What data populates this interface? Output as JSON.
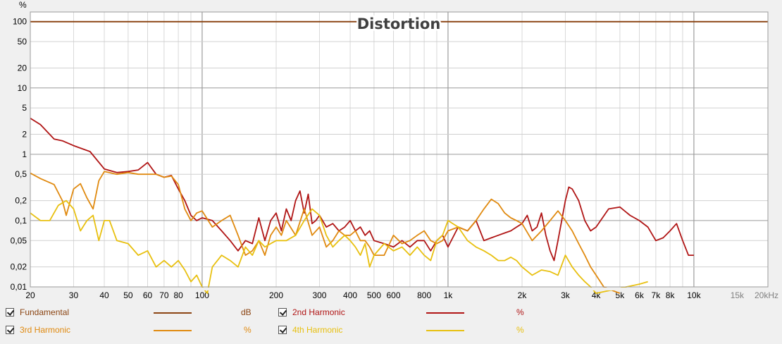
{
  "chart_data": {
    "type": "line",
    "title": "Distortion",
    "ylabel": "%",
    "xlabel": "",
    "xscale": "log",
    "yscale": "log",
    "xlim": [
      20,
      20000
    ],
    "ylim": [
      0.01,
      140
    ],
    "grid": true,
    "x_ticks": [
      {
        "v": 20,
        "label": "20"
      },
      {
        "v": 30,
        "label": "30"
      },
      {
        "v": 40,
        "label": "40"
      },
      {
        "v": 50,
        "label": "50"
      },
      {
        "v": 60,
        "label": "60"
      },
      {
        "v": 70,
        "label": "70"
      },
      {
        "v": 80,
        "label": "80"
      },
      {
        "v": 100,
        "label": "100"
      },
      {
        "v": 200,
        "label": "200"
      },
      {
        "v": 300,
        "label": "300"
      },
      {
        "v": 400,
        "label": "400"
      },
      {
        "v": 500,
        "label": "500"
      },
      {
        "v": 600,
        "label": "600"
      },
      {
        "v": 800,
        "label": "800"
      },
      {
        "v": 1000,
        "label": "1k"
      },
      {
        "v": 2000,
        "label": "2k"
      },
      {
        "v": 3000,
        "label": "3k"
      },
      {
        "v": 4000,
        "label": "4k"
      },
      {
        "v": 5000,
        "label": "5k"
      },
      {
        "v": 6000,
        "label": "6k"
      },
      {
        "v": 7000,
        "label": "7k"
      },
      {
        "v": 8000,
        "label": "8k"
      },
      {
        "v": 10000,
        "label": "10k"
      },
      {
        "v": 15000,
        "label": "15k"
      },
      {
        "v": 20000,
        "label": "20kHz"
      }
    ],
    "y_ticks": [
      {
        "v": 100,
        "label": "100"
      },
      {
        "v": 50,
        "label": "50"
      },
      {
        "v": 20,
        "label": "20"
      },
      {
        "v": 10,
        "label": "10"
      },
      {
        "v": 5,
        "label": "5"
      },
      {
        "v": 2,
        "label": "2"
      },
      {
        "v": 1,
        "label": "1"
      },
      {
        "v": 0.5,
        "label": "0,5"
      },
      {
        "v": 0.2,
        "label": "0,2"
      },
      {
        "v": 0.1,
        "label": "0,1"
      },
      {
        "v": 0.05,
        "label": "0,05"
      },
      {
        "v": 0.02,
        "label": "0,02"
      },
      {
        "v": 0.01,
        "label": "0,01"
      }
    ],
    "series": [
      {
        "name": "Fundamental",
        "unit": "dB",
        "color": "#8b4513",
        "x": [
          20,
          20000
        ],
        "y": [
          100,
          100
        ]
      },
      {
        "name": "2nd Harmonic",
        "unit": "%",
        "color": "#b01515",
        "x": [
          20,
          22,
          25,
          27,
          30,
          35,
          40,
          45,
          50,
          55,
          60,
          65,
          70,
          75,
          80,
          85,
          90,
          95,
          100,
          110,
          120,
          130,
          140,
          150,
          160,
          170,
          180,
          190,
          200,
          210,
          220,
          230,
          240,
          250,
          260,
          270,
          280,
          290,
          300,
          320,
          340,
          360,
          380,
          400,
          420,
          440,
          460,
          480,
          500,
          550,
          600,
          650,
          700,
          750,
          800,
          850,
          900,
          950,
          1000,
          1100,
          1200,
          1300,
          1400,
          1500,
          1600,
          1700,
          1800,
          1900,
          2000,
          2100,
          2200,
          2300,
          2400,
          2500,
          2600,
          2700,
          2800,
          2900,
          3000,
          3100,
          3200,
          3400,
          3600,
          3800,
          4000,
          4500,
          5000,
          5500,
          6000,
          6500,
          7000,
          7500,
          8000,
          8500,
          9000,
          9500,
          10000
        ],
        "y": [
          3.5,
          2.8,
          1.7,
          1.6,
          1.35,
          1.1,
          0.6,
          0.53,
          0.55,
          0.58,
          0.75,
          0.5,
          0.45,
          0.48,
          0.3,
          0.2,
          0.12,
          0.1,
          0.11,
          0.1,
          0.07,
          0.05,
          0.035,
          0.05,
          0.045,
          0.11,
          0.05,
          0.1,
          0.13,
          0.07,
          0.15,
          0.1,
          0.2,
          0.28,
          0.13,
          0.25,
          0.09,
          0.1,
          0.12,
          0.08,
          0.09,
          0.07,
          0.08,
          0.1,
          0.07,
          0.08,
          0.06,
          0.07,
          0.05,
          0.045,
          0.04,
          0.05,
          0.04,
          0.05,
          0.05,
          0.035,
          0.05,
          0.06,
          0.04,
          0.08,
          0.07,
          0.1,
          0.05,
          0.055,
          0.06,
          0.065,
          0.07,
          0.08,
          0.09,
          0.12,
          0.07,
          0.08,
          0.13,
          0.06,
          0.035,
          0.025,
          0.05,
          0.1,
          0.2,
          0.32,
          0.3,
          0.2,
          0.1,
          0.07,
          0.08,
          0.15,
          0.16,
          0.12,
          0.1,
          0.08,
          0.05,
          0.055,
          0.07,
          0.09,
          0.05,
          0.03,
          0.03
        ]
      },
      {
        "name": "3rd Harmonic",
        "unit": "%",
        "color": "#e08a10",
        "x": [
          20,
          22,
          25,
          27,
          28,
          30,
          32,
          34,
          36,
          38,
          40,
          45,
          50,
          55,
          60,
          65,
          70,
          75,
          80,
          85,
          90,
          95,
          100,
          110,
          120,
          130,
          140,
          150,
          160,
          170,
          180,
          190,
          200,
          210,
          220,
          240,
          260,
          280,
          300,
          320,
          340,
          360,
          380,
          400,
          420,
          440,
          460,
          480,
          500,
          550,
          600,
          650,
          700,
          750,
          800,
          850,
          900,
          950,
          1000,
          1100,
          1200,
          1300,
          1400,
          1500,
          1600,
          1700,
          1800,
          1900,
          2000,
          2200,
          2400,
          2600,
          2800,
          3000,
          3200,
          3400,
          3600,
          3800,
          4000,
          4300,
          4600,
          5000
        ],
        "y": [
          0.52,
          0.43,
          0.35,
          0.2,
          0.12,
          0.3,
          0.36,
          0.22,
          0.15,
          0.4,
          0.55,
          0.5,
          0.53,
          0.5,
          0.5,
          0.5,
          0.45,
          0.47,
          0.35,
          0.15,
          0.1,
          0.13,
          0.14,
          0.08,
          0.1,
          0.12,
          0.06,
          0.03,
          0.035,
          0.05,
          0.03,
          0.06,
          0.08,
          0.06,
          0.1,
          0.06,
          0.15,
          0.06,
          0.08,
          0.04,
          0.05,
          0.07,
          0.06,
          0.06,
          0.07,
          0.05,
          0.05,
          0.04,
          0.03,
          0.03,
          0.06,
          0.045,
          0.05,
          0.06,
          0.07,
          0.05,
          0.045,
          0.05,
          0.07,
          0.08,
          0.07,
          0.1,
          0.15,
          0.21,
          0.18,
          0.13,
          0.11,
          0.1,
          0.09,
          0.05,
          0.07,
          0.1,
          0.14,
          0.1,
          0.07,
          0.045,
          0.03,
          0.02,
          0.015,
          0.01,
          0.009,
          0.008
        ]
      },
      {
        "name": "4th Harmonic",
        "unit": "%",
        "color": "#e8c010",
        "x": [
          20,
          22,
          24,
          26,
          28,
          30,
          32,
          34,
          36,
          38,
          40,
          42,
          45,
          50,
          55,
          60,
          65,
          70,
          75,
          80,
          85,
          90,
          95,
          100,
          105,
          110,
          120,
          130,
          140,
          150,
          160,
          170,
          180,
          190,
          200,
          220,
          240,
          260,
          280,
          300,
          320,
          340,
          360,
          380,
          400,
          420,
          440,
          460,
          480,
          500,
          550,
          600,
          650,
          700,
          750,
          800,
          850,
          900,
          950,
          1000,
          1100,
          1200,
          1300,
          1400,
          1500,
          1600,
          1700,
          1800,
          1900,
          2000,
          2200,
          2400,
          2600,
          2800,
          3000,
          3200,
          3400,
          3600,
          3800,
          4000,
          6000,
          6500
        ],
        "y": [
          0.13,
          0.1,
          0.1,
          0.17,
          0.2,
          0.15,
          0.07,
          0.1,
          0.12,
          0.05,
          0.1,
          0.1,
          0.05,
          0.045,
          0.03,
          0.035,
          0.02,
          0.025,
          0.02,
          0.025,
          0.018,
          0.012,
          0.015,
          0.01,
          0.008,
          0.02,
          0.03,
          0.025,
          0.02,
          0.04,
          0.03,
          0.05,
          0.04,
          0.045,
          0.05,
          0.05,
          0.06,
          0.1,
          0.15,
          0.12,
          0.06,
          0.04,
          0.05,
          0.06,
          0.05,
          0.04,
          0.03,
          0.045,
          0.02,
          0.03,
          0.045,
          0.035,
          0.04,
          0.03,
          0.04,
          0.03,
          0.025,
          0.05,
          0.06,
          0.1,
          0.08,
          0.05,
          0.04,
          0.035,
          0.03,
          0.025,
          0.025,
          0.028,
          0.025,
          0.02,
          0.015,
          0.018,
          0.017,
          0.015,
          0.03,
          0.02,
          0.015,
          0.012,
          0.01,
          0.008,
          0.011,
          0.012
        ]
      }
    ]
  },
  "legend": {
    "items": [
      {
        "label": "Fundamental",
        "unit": "dB",
        "color": "#8b4513",
        "text_color": "#8b4513"
      },
      {
        "label": "2nd Harmonic",
        "unit": "%",
        "color": "#b01515",
        "text_color": "#b01515"
      },
      {
        "label": "3rd Harmonic",
        "unit": "%",
        "color": "#e08a10",
        "text_color": "#e08a10"
      },
      {
        "label": "4th Harmonic",
        "unit": "%",
        "color": "#e8c010",
        "text_color": "#e8c010"
      }
    ]
  }
}
